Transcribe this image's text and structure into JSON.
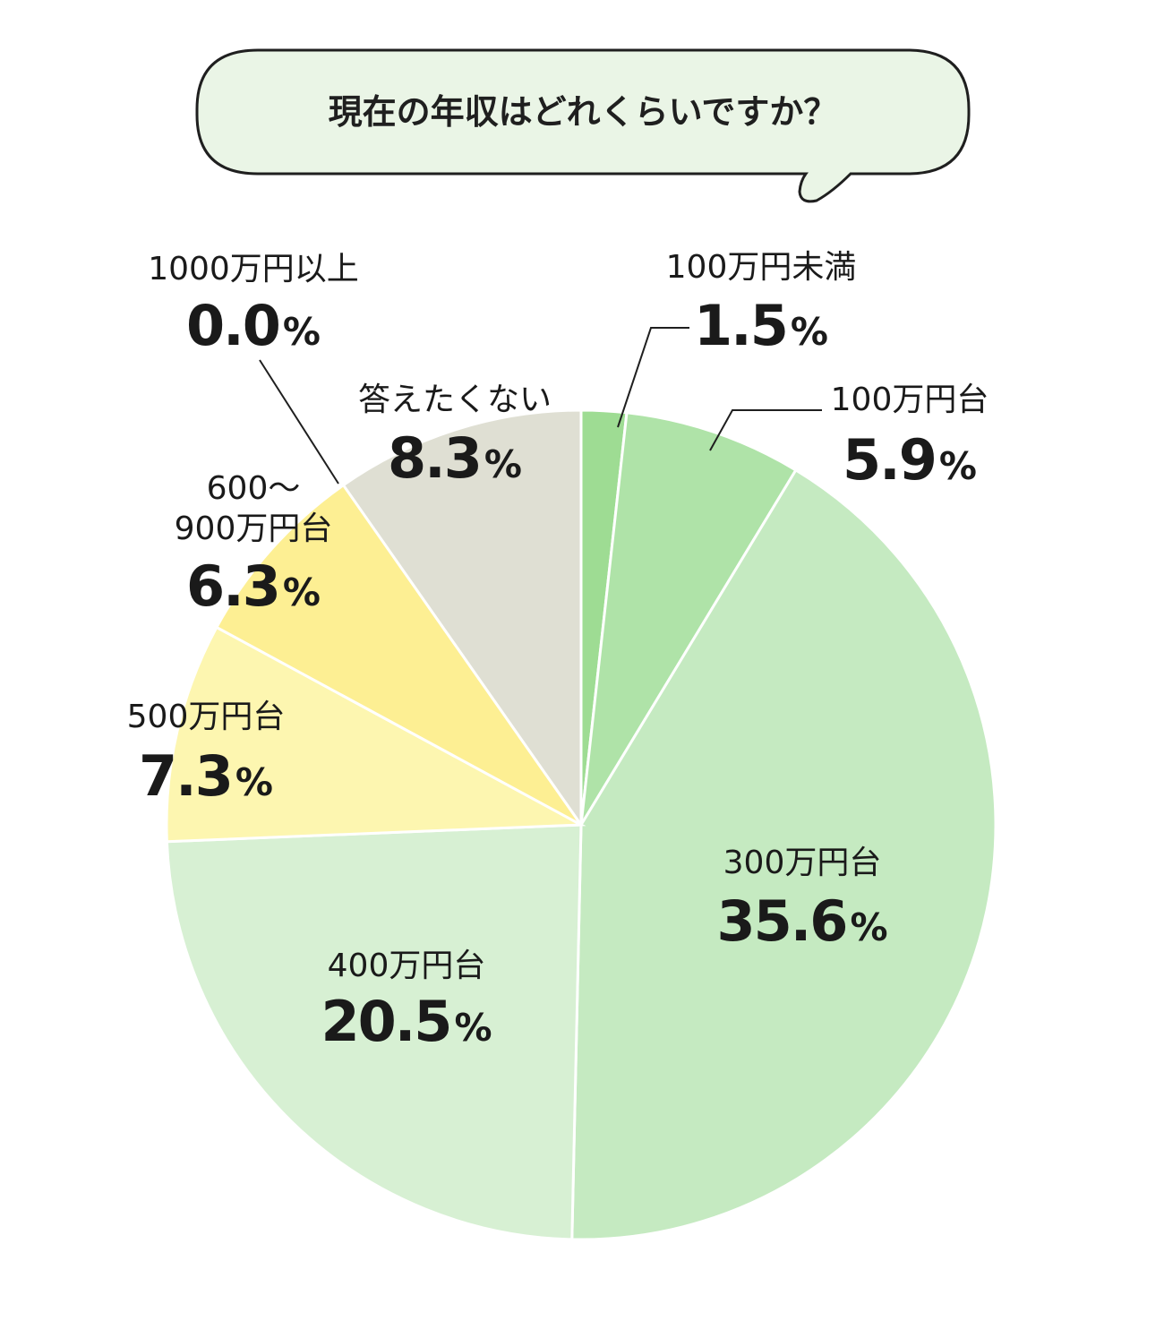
{
  "question": "現在の年収はどれくらいですか？",
  "percent_sign": "%",
  "chart_data": {
    "type": "pie",
    "start": "top, clockwise",
    "slices": [
      {
        "label": "100万円未満",
        "value_text": "1.5",
        "value": 1.5,
        "color": "#9edc93"
      },
      {
        "label": "100万円台",
        "value_text": "5.9",
        "value": 5.9,
        "color": "#afe3a8"
      },
      {
        "label": "300万円台",
        "value_text": "35.6",
        "value": 35.6,
        "color": "#c5eac1"
      },
      {
        "label": "400万円台",
        "value_text": "20.5",
        "value": 20.5,
        "color": "#d7f0d3"
      },
      {
        "label": "500万円台",
        "value_text": "7.3",
        "value": 7.3,
        "color": "#fdf6b0"
      },
      {
        "label": "600～ 900万円台",
        "label_lines": [
          "600～",
          "900万円台"
        ],
        "value_text": "6.3",
        "value": 6.3,
        "color": "#fdef93"
      },
      {
        "label": "1000万円以上",
        "value_text": "0.0",
        "value": 0.0,
        "color": "#ffffff"
      },
      {
        "label": "答えたくない",
        "value_text": "8.3",
        "value": 8.3,
        "color": "#dfdfd3"
      }
    ]
  }
}
